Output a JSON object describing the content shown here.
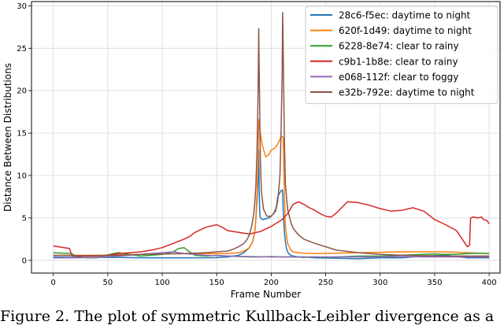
{
  "chart_data": {
    "type": "line",
    "xlabel": "Frame Number",
    "ylabel": "Distance Between Distributions",
    "xlim": [
      -20,
      410
    ],
    "ylim": [
      -1.5,
      30.5
    ],
    "xticks": [
      0,
      50,
      100,
      150,
      200,
      250,
      300,
      350,
      400
    ],
    "yticks": [
      0,
      5,
      10,
      15,
      20,
      25,
      30
    ],
    "grid": true,
    "legend_position": "top-right",
    "series": [
      {
        "name": "28c6-f5ec: daytime to night",
        "color": "#1f77b4",
        "x": [
          0,
          20,
          40,
          60,
          80,
          100,
          120,
          140,
          150,
          160,
          170,
          175,
          180,
          183,
          185,
          186,
          187,
          188,
          188.5,
          189,
          189.5,
          190,
          192,
          195,
          198,
          200,
          202,
          204,
          205,
          206,
          208,
          209,
          210,
          210.5,
          211,
          212,
          213,
          214,
          215,
          216,
          218,
          220,
          225,
          230,
          240,
          260,
          280,
          300,
          320,
          340,
          360,
          380,
          400
        ],
        "y": [
          0.4,
          0.35,
          0.35,
          0.35,
          0.3,
          0.3,
          0.3,
          0.3,
          0.32,
          0.4,
          0.6,
          0.9,
          1.5,
          2.2,
          3.5,
          5,
          7,
          10,
          13,
          8,
          5.5,
          5,
          4.8,
          4.9,
          5.0,
          5.2,
          5.5,
          6.0,
          6.5,
          7.5,
          8.0,
          8.2,
          8.3,
          8,
          6,
          3.5,
          2.2,
          1.4,
          1.0,
          0.8,
          0.6,
          0.5,
          0.4,
          0.4,
          0.3,
          0.25,
          0.2,
          0.3,
          0.3,
          0.5,
          0.6,
          0.3,
          0.3
        ]
      },
      {
        "name": "620f-1d49: daytime to night",
        "color": "#ff7f0e",
        "x": [
          0,
          20,
          40,
          60,
          80,
          100,
          120,
          140,
          160,
          170,
          175,
          180,
          183,
          185,
          186,
          187,
          188,
          188.5,
          189,
          190,
          192,
          195,
          198,
          200,
          203,
          205,
          207,
          208,
          209,
          210,
          211,
          212,
          213,
          215,
          218,
          220,
          225,
          230,
          240,
          260,
          280,
          300,
          320,
          340,
          360,
          380,
          400
        ],
        "y": [
          0.6,
          0.6,
          0.6,
          0.65,
          0.7,
          0.75,
          0.8,
          0.8,
          0.8,
          0.9,
          1.1,
          1.5,
          2.2,
          3.5,
          5,
          8,
          12,
          16.6,
          16,
          15,
          13.5,
          12.2,
          12.5,
          13.0,
          13.2,
          13.5,
          14.0,
          14.3,
          14.5,
          14.6,
          14.5,
          8,
          4,
          2,
          1.2,
          1.0,
          0.9,
          0.85,
          0.8,
          0.85,
          0.9,
          0.95,
          1.0,
          1.0,
          1.0,
          0.9,
          0.8
        ]
      },
      {
        "name": "6228-8e74: clear to rainy",
        "color": "#2ca02c",
        "x": [
          0,
          10,
          17,
          20,
          30,
          40,
          55,
          60,
          70,
          80,
          90,
          100,
          110,
          115,
          120,
          125,
          130,
          140,
          150,
          160,
          170,
          180,
          190,
          200,
          210,
          220,
          230,
          240,
          250,
          260,
          270,
          280,
          290,
          300,
          310,
          320,
          330,
          340,
          350,
          360,
          370,
          380,
          390,
          400
        ],
        "y": [
          0.9,
          0.85,
          0.8,
          0.5,
          0.3,
          0.3,
          0.8,
          0.9,
          0.7,
          0.5,
          0.6,
          0.7,
          1.0,
          1.4,
          1.5,
          1.0,
          0.6,
          0.5,
          0.6,
          0.5,
          0.45,
          0.4,
          0.4,
          0.45,
          0.4,
          0.4,
          0.35,
          0.4,
          0.35,
          0.4,
          0.45,
          0.5,
          0.5,
          0.5,
          0.55,
          0.6,
          0.65,
          0.7,
          0.75,
          0.7,
          0.7,
          0.8,
          0.85,
          0.8
        ]
      },
      {
        "name": "c9b1-1b8e: clear to rainy",
        "color": "#d62728",
        "x": [
          0,
          5,
          10,
          15,
          17,
          20,
          30,
          40,
          50,
          60,
          70,
          80,
          90,
          100,
          110,
          120,
          125,
          130,
          140,
          150,
          155,
          160,
          170,
          180,
          190,
          200,
          205,
          210,
          215,
          220,
          225,
          230,
          235,
          240,
          245,
          250,
          255,
          260,
          270,
          280,
          290,
          300,
          310,
          320,
          330,
          340,
          350,
          360,
          370,
          380,
          382,
          383,
          385,
          390,
          393,
          395,
          398,
          400
        ],
        "y": [
          1.7,
          1.6,
          1.5,
          1.4,
          0.5,
          0.5,
          0.5,
          0.5,
          0.6,
          0.8,
          0.9,
          1.0,
          1.2,
          1.5,
          2.0,
          2.5,
          2.8,
          3.3,
          3.9,
          4.2,
          3.9,
          3.5,
          3.3,
          3.1,
          3.4,
          4.0,
          4.4,
          4.8,
          5.5,
          6.6,
          6.9,
          6.6,
          6.2,
          5.9,
          5.5,
          5.2,
          5.1,
          5.6,
          6.9,
          6.8,
          6.5,
          6.1,
          5.8,
          5.9,
          6.2,
          5.8,
          4.8,
          4.2,
          3.5,
          1.6,
          1.8,
          5.0,
          5.1,
          5.0,
          5.1,
          4.8,
          4.7,
          4.3
        ]
      },
      {
        "name": "e068-112f: clear to foggy",
        "color": "#9467bd",
        "x": [
          0,
          20,
          40,
          60,
          80,
          100,
          110,
          120,
          140,
          160,
          180,
          200,
          220,
          240,
          260,
          280,
          300,
          320,
          340,
          360,
          380,
          400
        ],
        "y": [
          0.3,
          0.3,
          0.35,
          0.5,
          0.7,
          0.9,
          1.0,
          0.8,
          0.6,
          0.5,
          0.45,
          0.4,
          0.4,
          0.4,
          0.4,
          0.4,
          0.4,
          0.45,
          0.4,
          0.4,
          0.4,
          0.4
        ]
      },
      {
        "name": "e32b-792e: daytime to night",
        "color": "#8c564b",
        "x": [
          0,
          20,
          40,
          60,
          80,
          100,
          120,
          140,
          150,
          160,
          165,
          170,
          175,
          178,
          180,
          182,
          184,
          185,
          186,
          187,
          188,
          188.5,
          189,
          190,
          191,
          193,
          196,
          200,
          204,
          206,
          208,
          209,
          210,
          210.5,
          211,
          212,
          213,
          215,
          218,
          220,
          225,
          230,
          240,
          260,
          280,
          300,
          320,
          340,
          360,
          380,
          400
        ],
        "y": [
          0.6,
          0.55,
          0.55,
          0.6,
          0.7,
          0.75,
          0.8,
          0.9,
          1.0,
          1.1,
          1.3,
          1.6,
          2.0,
          2.5,
          3.0,
          4.0,
          5.5,
          7.0,
          9.0,
          13.0,
          20.0,
          27.3,
          22.0,
          12.0,
          8.0,
          6.0,
          5.2,
          5.2,
          5.8,
          7.0,
          10.0,
          15.0,
          22.0,
          29.2,
          25.0,
          15.0,
          9.0,
          6.0,
          4.5,
          3.8,
          3.0,
          2.5,
          2.0,
          1.2,
          0.9,
          0.7,
          0.6,
          0.55,
          0.5,
          0.5,
          0.5
        ]
      }
    ]
  },
  "caption": "Figure 2. The plot of symmetric Kullback-Leibler divergence as a"
}
